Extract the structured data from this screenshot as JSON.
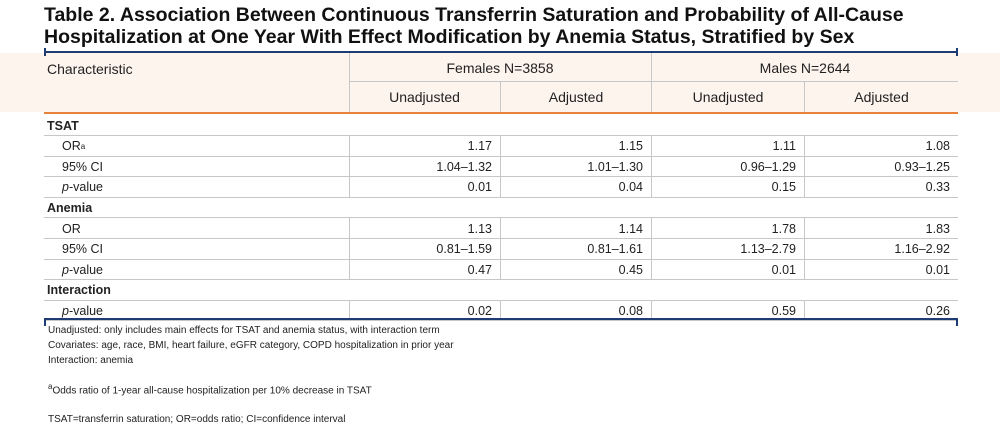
{
  "title": {
    "line1": "Table 2. Association Between Continuous Transferrin Saturation and Probability of All-Cause",
    "line2": "Hospitalization at One Year With Effect Modification by Anemia Status, Stratified by Sex"
  },
  "header": {
    "characteristic": "Characteristic",
    "females": "Females N=3858",
    "males": "Males N=2644",
    "sub": [
      "Unadjusted",
      "Adjusted",
      "Unadjusted",
      "Adjusted"
    ]
  },
  "sections": [
    {
      "name": "TSAT",
      "rows": [
        {
          "label": "OR",
          "sup": "a",
          "italic_prefix": "",
          "values": [
            "1.17",
            "1.15",
            "1.11",
            "1.08"
          ]
        },
        {
          "label": "95% CI",
          "sup": "",
          "italic_prefix": "",
          "values": [
            "1.04–1.32",
            "1.01–1.30",
            "0.96–1.29",
            "0.93–1.25"
          ]
        },
        {
          "label": "-value",
          "sup": "",
          "italic_prefix": "p",
          "values": [
            "0.01",
            "0.04",
            "0.15",
            "0.33"
          ]
        }
      ]
    },
    {
      "name": "Anemia",
      "rows": [
        {
          "label": "OR",
          "sup": "",
          "italic_prefix": "",
          "values": [
            "1.13",
            "1.14",
            "1.78",
            "1.83"
          ]
        },
        {
          "label": "95% CI",
          "sup": "",
          "italic_prefix": "",
          "values": [
            "0.81–1.59",
            "0.81–1.61",
            "1.13–2.79",
            "1.16–2.92"
          ]
        },
        {
          "label": "-value",
          "sup": "",
          "italic_prefix": "p",
          "values": [
            "0.47",
            "0.45",
            "0.01",
            "0.01"
          ]
        }
      ]
    },
    {
      "name": "Interaction",
      "rows": [
        {
          "label": "-value",
          "sup": "",
          "italic_prefix": "p",
          "values": [
            "0.02",
            "0.08",
            "0.59",
            "0.26"
          ]
        }
      ]
    }
  ],
  "footnotes": {
    "line1": "Unadjusted: only includes main effects for TSAT and anemia status, with interaction term",
    "line2": "Covariates: age, race, BMI, heart failure, eGFR category, COPD hospitalization in prior year",
    "line3": "Interaction: anemia",
    "note_a_marker": "a",
    "note_a": "Odds ratio of 1-year all-cause hospitalization per 10% decrease in TSAT",
    "abbrev": "TSAT=transferrin saturation; OR=odds ratio; CI=confidence interval"
  },
  "colors": {
    "rule": "#1f3b73",
    "accent": "#e8813a",
    "band": "#fdf4ee"
  }
}
